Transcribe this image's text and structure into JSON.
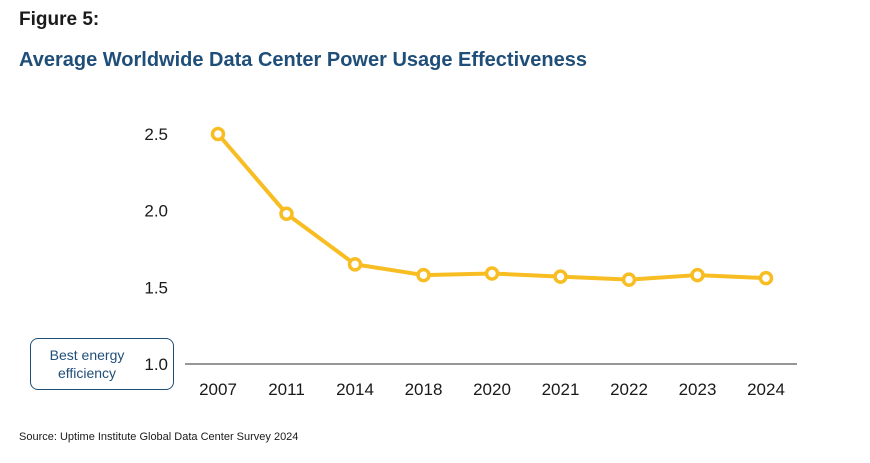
{
  "figure_label": "Figure 5:",
  "title": "Average Worldwide Data Center Power Usage Effectiveness",
  "source": "Source: Uptime Institute Global Data Center Survey 2024",
  "annotation": "Best energy efficiency",
  "colors": {
    "line": "#f7bd22",
    "title": "#1f4e79",
    "axis": "#595959"
  },
  "chart_data": {
    "type": "line",
    "title": "Average Worldwide Data Center Power Usage Effectiveness",
    "xlabel": "",
    "ylabel": "",
    "categories": [
      "2007",
      "2011",
      "2014",
      "2018",
      "2020",
      "2021",
      "2022",
      "2023",
      "2024"
    ],
    "series": [
      {
        "values": [
          2.5,
          1.98,
          1.65,
          1.58,
          1.59,
          1.57,
          1.55,
          1.58,
          1.56
        ]
      }
    ],
    "ylim": [
      1.0,
      2.5
    ],
    "yticks": [
      "1.0",
      "1.5",
      "2.0",
      "2.5"
    ],
    "grid": false,
    "legend": "none"
  }
}
